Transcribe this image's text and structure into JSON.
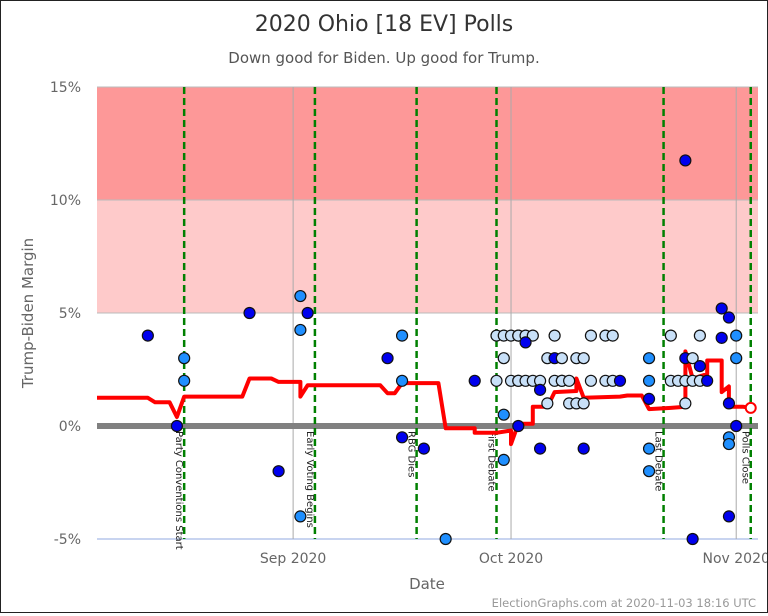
{
  "chart_data": {
    "type": "scatter",
    "title": "2020 Ohio [18 EV] Polls",
    "subtitle": "Down good for Biden. Up good for Trump.",
    "xlabel": "Date",
    "ylabel": "Trump-Biden Margin",
    "footer": "ElectionGraphs.com at 2020-11-03 18:16 UTC",
    "xlim": [
      "2020-08-05",
      "2020-11-04"
    ],
    "ylim": [
      -5,
      15
    ],
    "yticks": [
      {
        "value": 15,
        "label": "15%"
      },
      {
        "value": 10,
        "label": "10%"
      },
      {
        "value": 5,
        "label": "5%"
      },
      {
        "value": 0,
        "label": "0%"
      },
      {
        "value": -5,
        "label": "-5%"
      }
    ],
    "xticks": [
      {
        "date": "2020-09-01",
        "label": "Sep 2020"
      },
      {
        "date": "2020-10-01",
        "label": "Oct 2020"
      },
      {
        "date": "2020-11-01",
        "label": "Nov 2020"
      }
    ],
    "bands": [
      {
        "from": 10,
        "to": 15,
        "color": "#fd9898"
      },
      {
        "from": 5,
        "to": 10,
        "color": "#fecaca"
      }
    ],
    "colors": {
      "dark": "#0000ee",
      "medium": "#1f8fff",
      "light": "#c8e0f8",
      "average": "#ff0000",
      "event": "#008000",
      "zero": "#808080"
    },
    "events": [
      {
        "date": "2020-08-17",
        "label": "Party Conventions Start"
      },
      {
        "date": "2020-09-04",
        "label": "Early Voting Begins"
      },
      {
        "date": "2020-09-18",
        "label": "RBG Dies"
      },
      {
        "date": "2020-09-29",
        "label": "First Debate"
      },
      {
        "date": "2020-10-22",
        "label": "Last Debate"
      },
      {
        "date": "2020-11-03",
        "label": "Polls Close"
      }
    ],
    "polls": [
      [
        "2020-08-12",
        4,
        "dark"
      ],
      [
        "2020-08-17",
        3,
        "medium"
      ],
      [
        "2020-08-17",
        2,
        "medium"
      ],
      [
        "2020-08-16",
        0,
        "dark"
      ],
      [
        "2020-08-26",
        5,
        "dark"
      ],
      [
        "2020-08-30",
        -2,
        "dark"
      ],
      [
        "2020-09-02",
        5.75,
        "medium"
      ],
      [
        "2020-09-02",
        4.25,
        "medium"
      ],
      [
        "2020-09-03",
        5,
        "dark"
      ],
      [
        "2020-09-02",
        -4,
        "medium"
      ],
      [
        "2020-09-14",
        3,
        "dark"
      ],
      [
        "2020-09-16",
        4,
        "medium"
      ],
      [
        "2020-09-16",
        2,
        "medium"
      ],
      [
        "2020-09-16",
        -0.5,
        "dark"
      ],
      [
        "2020-09-19",
        -1,
        "dark"
      ],
      [
        "2020-09-22",
        -5,
        "medium"
      ],
      [
        "2020-09-26",
        2,
        "dark"
      ],
      [
        "2020-09-30",
        0.5,
        "medium"
      ],
      [
        "2020-09-30",
        -1.5,
        "medium"
      ],
      [
        "2020-10-02",
        0,
        "dark"
      ],
      [
        "2020-09-29",
        4,
        "light"
      ],
      [
        "2020-09-30",
        4,
        "light"
      ],
      [
        "2020-10-01",
        4,
        "light"
      ],
      [
        "2020-10-02",
        4,
        "light"
      ],
      [
        "2020-10-02",
        4,
        "light"
      ],
      [
        "2020-10-03",
        4,
        "light"
      ],
      [
        "2020-10-04",
        4,
        "light"
      ],
      [
        "2020-10-07",
        4,
        "light"
      ],
      [
        "2020-10-12",
        4,
        "light"
      ],
      [
        "2020-10-14",
        4,
        "light"
      ],
      [
        "2020-10-15",
        4,
        "light"
      ],
      [
        "2020-10-23",
        4,
        "light"
      ],
      [
        "2020-10-27",
        4,
        "light"
      ],
      [
        "2020-10-30",
        3.9,
        "dark"
      ],
      [
        "2020-11-01",
        4,
        "medium"
      ],
      [
        "2020-10-03",
        3.7,
        "dark"
      ],
      [
        "2020-09-30",
        3,
        "light"
      ],
      [
        "2020-10-06",
        3,
        "light"
      ],
      [
        "2020-10-07",
        3,
        "dark"
      ],
      [
        "2020-10-08",
        3,
        "light"
      ],
      [
        "2020-10-10",
        3,
        "light"
      ],
      [
        "2020-10-11",
        3,
        "light"
      ],
      [
        "2020-10-20",
        3,
        "medium"
      ],
      [
        "2020-11-01",
        3,
        "medium"
      ],
      [
        "2020-10-25",
        3,
        "dark"
      ],
      [
        "2020-10-26",
        3,
        "light"
      ],
      [
        "2020-10-27",
        2.65,
        "dark"
      ],
      [
        "2020-09-29",
        2,
        "light"
      ],
      [
        "2020-10-01",
        2,
        "light"
      ],
      [
        "2020-10-02",
        2,
        "light"
      ],
      [
        "2020-10-02",
        2,
        "light"
      ],
      [
        "2020-10-03",
        2,
        "light"
      ],
      [
        "2020-10-04",
        2,
        "light"
      ],
      [
        "2020-10-05",
        2,
        "light"
      ],
      [
        "2020-10-07",
        2,
        "light"
      ],
      [
        "2020-10-08",
        2,
        "light"
      ],
      [
        "2020-10-08",
        2,
        "light"
      ],
      [
        "2020-10-09",
        2,
        "light"
      ],
      [
        "2020-10-12",
        2,
        "light"
      ],
      [
        "2020-10-14",
        2,
        "light"
      ],
      [
        "2020-10-15",
        2,
        "light"
      ],
      [
        "2020-10-16",
        2,
        "dark"
      ],
      [
        "2020-10-20",
        2,
        "medium"
      ],
      [
        "2020-10-23",
        2,
        "light"
      ],
      [
        "2020-10-24",
        2,
        "light"
      ],
      [
        "2020-10-25",
        2,
        "light"
      ],
      [
        "2020-10-26",
        2,
        "light"
      ],
      [
        "2020-10-27",
        2,
        "light"
      ],
      [
        "2020-10-28",
        2,
        "dark"
      ],
      [
        "2020-10-05",
        1.6,
        "dark"
      ],
      [
        "2020-10-06",
        1,
        "light"
      ],
      [
        "2020-10-09",
        1,
        "light"
      ],
      [
        "2020-10-10",
        1,
        "light"
      ],
      [
        "2020-10-11",
        1,
        "light"
      ],
      [
        "2020-10-25",
        1,
        "light"
      ],
      [
        "2020-10-20",
        1.2,
        "dark"
      ],
      [
        "2020-10-31",
        1,
        "dark"
      ],
      [
        "2020-11-01",
        0,
        "dark"
      ],
      [
        "2020-10-05",
        -1,
        "dark"
      ],
      [
        "2020-10-11",
        -1,
        "dark"
      ],
      [
        "2020-10-20",
        -1,
        "medium"
      ],
      [
        "2020-10-20",
        -2,
        "medium"
      ],
      [
        "2020-10-26",
        -5,
        "dark"
      ],
      [
        "2020-10-31",
        -0.5,
        "medium"
      ],
      [
        "2020-10-31",
        -0.8,
        "medium"
      ],
      [
        "2020-10-31",
        -4,
        "dark"
      ],
      [
        "2020-10-25",
        11.75,
        "dark"
      ],
      [
        "2020-10-30",
        5.2,
        "dark"
      ],
      [
        "2020-10-31",
        4.8,
        "dark"
      ]
    ],
    "average": [
      [
        "2020-08-05",
        1.25
      ],
      [
        "2020-08-12",
        1.25
      ],
      [
        "2020-08-13",
        1.05
      ],
      [
        "2020-08-15",
        1.05
      ],
      [
        "2020-08-16",
        0.4
      ],
      [
        "2020-08-17",
        1.3
      ],
      [
        "2020-08-25",
        1.3
      ],
      [
        "2020-08-26",
        2.1
      ],
      [
        "2020-08-29",
        2.1
      ],
      [
        "2020-08-30",
        1.95
      ],
      [
        "2020-09-02",
        1.95
      ],
      [
        "2020-09-02",
        1.3
      ],
      [
        "2020-09-03",
        1.8
      ],
      [
        "2020-09-13",
        1.8
      ],
      [
        "2020-09-14",
        1.45
      ],
      [
        "2020-09-15",
        1.45
      ],
      [
        "2020-09-16",
        1.9
      ],
      [
        "2020-09-21",
        1.9
      ],
      [
        "2020-09-22",
        -0.1
      ],
      [
        "2020-09-26",
        -0.1
      ],
      [
        "2020-09-26",
        -0.3
      ],
      [
        "2020-09-29",
        -0.3
      ],
      [
        "2020-10-01",
        -0.2
      ],
      [
        "2020-10-01",
        -0.8
      ],
      [
        "2020-10-02",
        0.1
      ],
      [
        "2020-10-04",
        0.1
      ],
      [
        "2020-10-04",
        0.85
      ],
      [
        "2020-10-06",
        0.85
      ],
      [
        "2020-10-07",
        1.5
      ],
      [
        "2020-10-10",
        1.55
      ],
      [
        "2020-10-10",
        2.1
      ],
      [
        "2020-10-11",
        1.25
      ],
      [
        "2020-10-16",
        1.3
      ],
      [
        "2020-10-17",
        1.35
      ],
      [
        "2020-10-19",
        1.35
      ],
      [
        "2020-10-20",
        0.75
      ],
      [
        "2020-10-23",
        0.8
      ],
      [
        "2020-10-25",
        0.85
      ],
      [
        "2020-10-25",
        3.3
      ],
      [
        "2020-10-26",
        2.1
      ],
      [
        "2020-10-28",
        2.3
      ],
      [
        "2020-10-28",
        2.9
      ],
      [
        "2020-10-30",
        2.9
      ],
      [
        "2020-10-30",
        1.5
      ],
      [
        "2020-10-31",
        1.75
      ],
      [
        "2020-10-31",
        0.85
      ],
      [
        "2020-11-02",
        0.85
      ],
      [
        "2020-11-03",
        0.8
      ]
    ]
  }
}
